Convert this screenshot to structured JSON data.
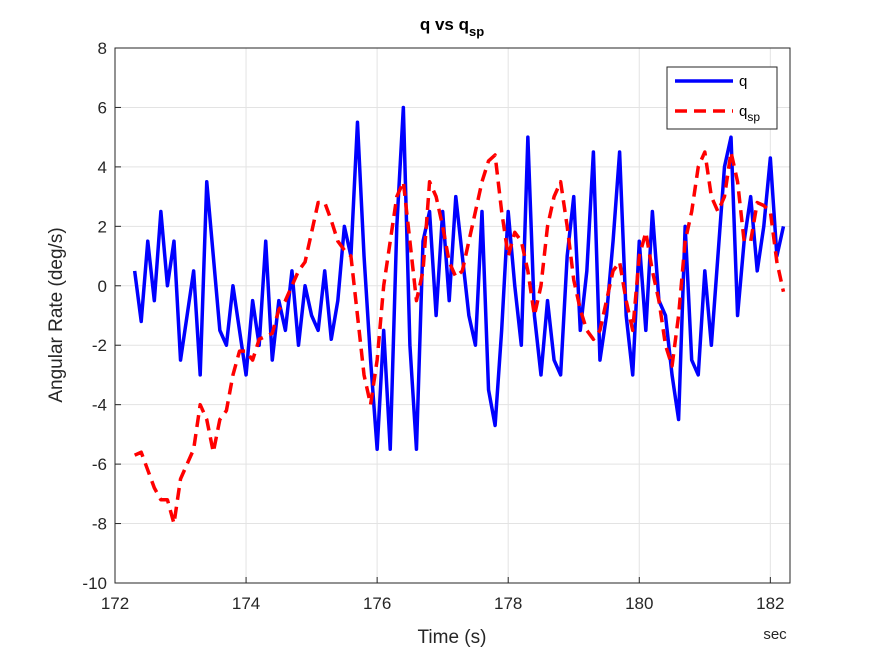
{
  "chart_data": {
    "type": "line",
    "title": "q vs q",
    "title_subscript": "sp",
    "xlabel": "Time (s)",
    "ylabel": "Angular Rate (deg/s)",
    "x_unit_label": "sec",
    "xlim": [
      172,
      182.3
    ],
    "ylim": [
      -10,
      8
    ],
    "xticks": [
      172,
      174,
      176,
      178,
      180,
      182
    ],
    "yticks": [
      -10,
      -8,
      -6,
      -4,
      -2,
      0,
      2,
      4,
      6,
      8
    ],
    "grid": true,
    "legend_position": "top-right",
    "x": [
      172.3,
      172.4,
      172.5,
      172.6,
      172.7,
      172.8,
      172.9,
      173.0,
      173.1,
      173.2,
      173.3,
      173.4,
      173.5,
      173.6,
      173.7,
      173.8,
      173.9,
      174.0,
      174.1,
      174.2,
      174.3,
      174.4,
      174.5,
      174.6,
      174.7,
      174.8,
      174.9,
      175.0,
      175.1,
      175.2,
      175.3,
      175.4,
      175.5,
      175.6,
      175.7,
      175.8,
      175.9,
      176.0,
      176.1,
      176.2,
      176.3,
      176.4,
      176.5,
      176.6,
      176.7,
      176.8,
      176.9,
      177.0,
      177.1,
      177.2,
      177.3,
      177.4,
      177.5,
      177.6,
      177.7,
      177.8,
      177.9,
      178.0,
      178.1,
      178.2,
      178.3,
      178.4,
      178.5,
      178.6,
      178.7,
      178.8,
      178.9,
      179.0,
      179.1,
      179.2,
      179.3,
      179.4,
      179.5,
      179.6,
      179.7,
      179.8,
      179.9,
      180.0,
      180.1,
      180.2,
      180.3,
      180.4,
      180.5,
      180.6,
      180.7,
      180.8,
      180.9,
      181.0,
      181.1,
      181.2,
      181.3,
      181.4,
      181.5,
      181.6,
      181.7,
      181.8,
      181.9,
      182.0,
      182.1,
      182.2
    ],
    "series": [
      {
        "name": "q",
        "color": "#0000ff",
        "dash": false,
        "values": [
          0.5,
          -1.2,
          1.5,
          -0.5,
          2.5,
          0.0,
          1.5,
          -2.5,
          -1.0,
          0.5,
          -3.0,
          3.5,
          1.0,
          -1.5,
          -2.0,
          0.0,
          -1.5,
          -3.0,
          -0.5,
          -2.0,
          1.5,
          -2.5,
          -0.5,
          -1.5,
          0.5,
          -2.0,
          0.0,
          -1.0,
          -1.5,
          0.5,
          -1.8,
          -0.5,
          2.0,
          1.0,
          5.5,
          1.0,
          -2.5,
          -5.5,
          -1.5,
          -5.5,
          2.0,
          6.0,
          -2.0,
          -5.5,
          1.5,
          2.5,
          -1.0,
          2.5,
          -0.5,
          3.0,
          1.0,
          -1.0,
          -2.0,
          2.5,
          -3.5,
          -4.7,
          -1.5,
          2.5,
          0.0,
          -2.0,
          5.0,
          -1.0,
          -3.0,
          -0.5,
          -2.5,
          -3.0,
          1.0,
          3.0,
          -1.5,
          0.5,
          4.5,
          -2.5,
          -1.0,
          1.5,
          4.5,
          -1.0,
          -3.0,
          1.5,
          -1.5,
          2.5,
          -0.5,
          -1.0,
          -3.0,
          -4.5,
          2.0,
          -2.5,
          -3.0,
          0.5,
          -2.0,
          1.0,
          4.0,
          5.0,
          -1.0,
          1.5,
          3.0,
          0.5,
          2.0,
          4.3,
          1.0,
          2.0
        ]
      },
      {
        "name": "q",
        "name_subscript": "sp",
        "color": "#ff0000",
        "dash": true,
        "values": [
          -5.7,
          -5.6,
          -6.2,
          -6.8,
          -7.2,
          -7.2,
          -8.0,
          -6.5,
          -6.0,
          -5.5,
          -4.0,
          -4.5,
          -5.6,
          -4.5,
          -4.2,
          -3.0,
          -2.2,
          -2.2,
          -2.5,
          -1.8,
          -1.7,
          -1.6,
          -0.8,
          -0.5,
          0.0,
          0.5,
          0.8,
          1.8,
          2.8,
          2.8,
          2.2,
          1.5,
          1.2,
          1.0,
          -1.0,
          -3.0,
          -4.0,
          -2.5,
          0.0,
          1.5,
          3.0,
          3.5,
          1.5,
          -0.5,
          0.5,
          3.5,
          3.0,
          2.0,
          0.8,
          0.3,
          0.5,
          1.5,
          2.5,
          3.5,
          4.2,
          4.4,
          2.5,
          1.0,
          1.8,
          1.5,
          0.5,
          -1.0,
          0.0,
          2.0,
          3.0,
          3.5,
          2.0,
          0.2,
          -0.8,
          -1.5,
          -1.8,
          -1.5,
          -0.5,
          0.5,
          0.8,
          -0.5,
          -1.5,
          1.0,
          1.8,
          0.5,
          -0.5,
          -2.0,
          -2.7,
          -1.0,
          1.5,
          2.5,
          4.0,
          4.5,
          3.0,
          2.5,
          3.0,
          4.5,
          3.5,
          1.5,
          1.5,
          2.8,
          2.7,
          2.5,
          0.8,
          -0.2
        ]
      }
    ]
  }
}
